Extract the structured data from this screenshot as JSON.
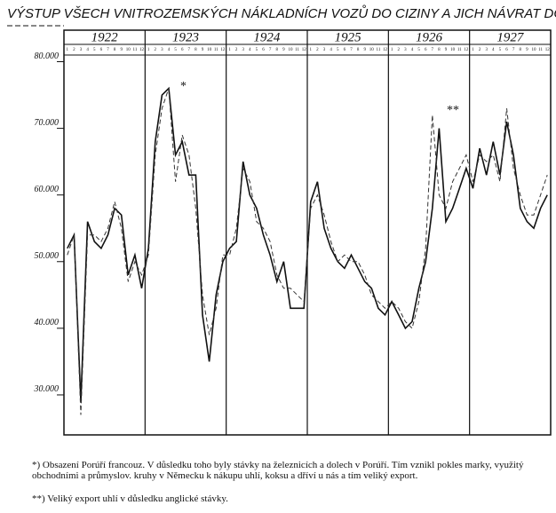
{
  "chart_data": {
    "type": "line",
    "title": "VÝSTUP VŠECH VNITROZEMSKÝCH NÁKLADNÍCH VOZŮ DO CIZINY A JICH NÁVRAT DO ČS K.",
    "years": [
      "1922",
      "1923",
      "1924",
      "1925",
      "1926",
      "1927"
    ],
    "categories": [
      "1",
      "2",
      "3",
      "4",
      "5",
      "6",
      "7",
      "8",
      "9",
      "10",
      "11",
      "12",
      "1",
      "2",
      "3",
      "4",
      "5",
      "6",
      "7",
      "8",
      "9",
      "10",
      "11",
      "12",
      "1",
      "2",
      "3",
      "4",
      "5",
      "6",
      "7",
      "8",
      "9",
      "10",
      "11",
      "12",
      "1",
      "2",
      "3",
      "4",
      "5",
      "6",
      "7",
      "8",
      "9",
      "10",
      "11",
      "12",
      "1",
      "2",
      "3",
      "4",
      "5",
      "6",
      "7",
      "8",
      "9",
      "10",
      "11",
      "12",
      "1",
      "2",
      "3",
      "4",
      "5",
      "6",
      "7",
      "8",
      "9",
      "10",
      "11",
      "12"
    ],
    "series": [
      {
        "color": "#111111",
        "style": "solid",
        "values": [
          52000,
          54000,
          29000,
          56000,
          53000,
          52000,
          54000,
          58000,
          57000,
          48000,
          51000,
          46000,
          52000,
          68000,
          75000,
          76000,
          66000,
          68000,
          63000,
          63000,
          42000,
          35000,
          45000,
          50000,
          52000,
          53000,
          65000,
          60000,
          58000,
          54000,
          51000,
          47000,
          50000,
          43000,
          43000,
          43000,
          59000,
          62000,
          55000,
          52000,
          50000,
          49000,
          51000,
          49000,
          47000,
          46000,
          43000,
          42000,
          44000,
          42000,
          40000,
          41000,
          46000,
          50000,
          58000,
          70000,
          56000,
          58000,
          61000,
          64000,
          61000,
          67000,
          63000,
          68000,
          63000,
          71000,
          66000,
          58000,
          56000,
          55000,
          58000,
          60000
        ]
      },
      {
        "color": "#333333",
        "style": "dashed",
        "values": [
          51000,
          54000,
          27000,
          54000,
          54000,
          53000,
          55000,
          59000,
          55000,
          47000,
          50000,
          48000,
          51000,
          66000,
          73000,
          76000,
          62000,
          69000,
          66000,
          58000,
          45000,
          39000,
          43000,
          51000,
          51000,
          55000,
          64000,
          62000,
          56000,
          55000,
          53000,
          48000,
          46000,
          46000,
          45000,
          44000,
          58000,
          60000,
          57000,
          53000,
          50000,
          51000,
          50000,
          50000,
          48000,
          45000,
          44000,
          43000,
          44000,
          43000,
          41000,
          40000,
          44000,
          52000,
          72000,
          60000,
          58000,
          62000,
          64000,
          66000,
          62000,
          66000,
          65000,
          66000,
          62000,
          73000,
          64000,
          60000,
          57000,
          57000,
          60000,
          63000
        ]
      }
    ],
    "ylim": [
      24000,
      81000
    ],
    "yticks": [
      {
        "value": 30000,
        "label": "30.000"
      },
      {
        "value": 40000,
        "label": "40.000"
      },
      {
        "value": 50000,
        "label": "50.000"
      },
      {
        "value": 60000,
        "label": "60.000"
      },
      {
        "value": 70000,
        "label": "70.000"
      },
      {
        "value": 80000,
        "label": "80.000"
      }
    ],
    "annotations": [
      "*",
      "**"
    ],
    "notes": [
      "*) Obsazení Porúří francouz. V důsledku toho byly stávky na železnicích a dolech v Porúří. Tím vznikl pokles marky, využitý obchodními a průmyslov. kruhy v Německu k nákupu uhlí, koksu a dříví u nás a tím veliký export.",
      "**) Veliký export uhlí v důsledku anglické stávky."
    ]
  }
}
